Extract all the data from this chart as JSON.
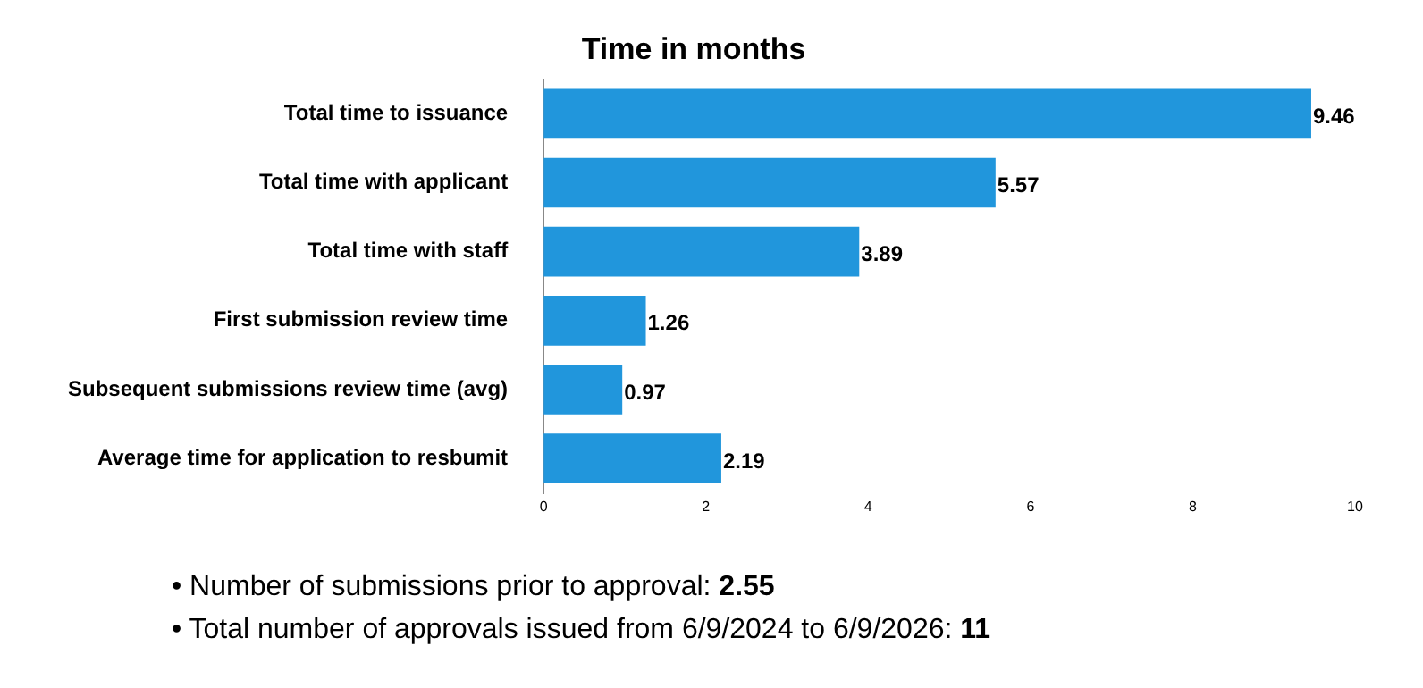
{
  "chart_data": {
    "type": "bar",
    "orientation": "horizontal",
    "title": "Time in months",
    "categories": [
      "Total time to issuance",
      "Total time with applicant",
      "Total time with staff",
      "First submission review time",
      "Subsequent submissions review time (avg)",
      "Average time for application to resbumit"
    ],
    "values": [
      9.46,
      5.57,
      3.89,
      1.26,
      0.97,
      2.19
    ],
    "color": "#2196dc",
    "xlim": [
      0,
      10
    ],
    "xticks": [
      0,
      2,
      4,
      6,
      8,
      10
    ],
    "grid": false,
    "legend": false,
    "data_labels": true,
    "annotations": [
      "• Number of submissions prior to approval:  2.55",
      "• Total number of approvals issued from 6/9/2024 to 6/9/2026: 11"
    ]
  }
}
